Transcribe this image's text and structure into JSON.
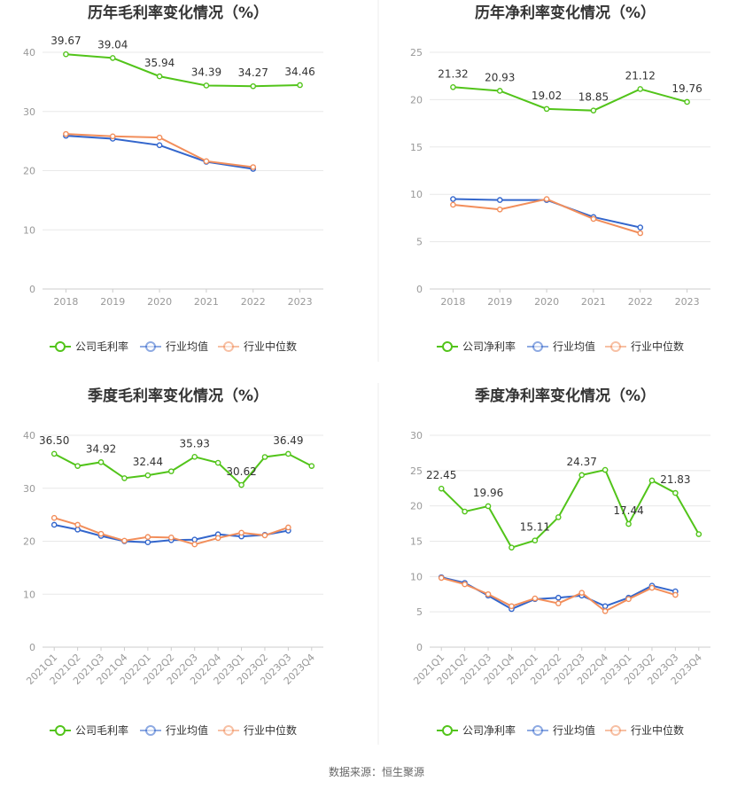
{
  "source_text": "数据来源：恒生聚源",
  "legend_colors": {
    "company": "#52c41a",
    "avg": "#3366cc",
    "median": "#f28e5b"
  },
  "chart_data": [
    {
      "type": "line",
      "title": "历年毛利率变化情况（%）",
      "categories": [
        "2018",
        "2019",
        "2020",
        "2021",
        "2022",
        "2023"
      ],
      "ylim": [
        0,
        40
      ],
      "yticks": [
        0,
        10,
        20,
        30,
        40
      ],
      "series": [
        {
          "name": "公司毛利率",
          "color": "#52c41a",
          "values": [
            39.67,
            39.04,
            35.94,
            34.39,
            34.27,
            34.46
          ],
          "labels": [
            "39.67",
            "39.04",
            "35.94",
            "34.39",
            "34.27",
            "34.46"
          ]
        },
        {
          "name": "行业均值",
          "color": "#3366cc",
          "values": [
            25.9,
            25.4,
            24.3,
            21.5,
            20.3,
            null
          ]
        },
        {
          "name": "行业中位数",
          "color": "#f28e5b",
          "values": [
            26.2,
            25.8,
            25.6,
            21.6,
            20.6,
            null
          ]
        }
      ]
    },
    {
      "type": "line",
      "title": "历年净利率变化情况（%）",
      "categories": [
        "2018",
        "2019",
        "2020",
        "2021",
        "2022",
        "2023"
      ],
      "ylim": [
        0,
        25
      ],
      "yticks": [
        0,
        5,
        10,
        15,
        20,
        25
      ],
      "series": [
        {
          "name": "公司净利率",
          "color": "#52c41a",
          "values": [
            21.32,
            20.93,
            19.02,
            18.85,
            21.12,
            19.76
          ],
          "labels": [
            "21.32",
            "20.93",
            "19.02",
            "18.85",
            "21.12",
            "19.76"
          ]
        },
        {
          "name": "行业均值",
          "color": "#3366cc",
          "values": [
            9.5,
            9.4,
            9.4,
            7.6,
            6.5,
            null
          ]
        },
        {
          "name": "行业中位数",
          "color": "#f28e5b",
          "values": [
            8.9,
            8.4,
            9.5,
            7.4,
            5.9,
            null
          ]
        }
      ]
    },
    {
      "type": "line",
      "title": "季度毛利率变化情况（%）",
      "categories": [
        "2021Q1",
        "2021Q2",
        "2021Q3",
        "2021Q4",
        "2022Q1",
        "2022Q2",
        "2022Q3",
        "2022Q4",
        "2023Q1",
        "2023Q2",
        "2023Q3",
        "2023Q4"
      ],
      "ylim": [
        0,
        40
      ],
      "yticks": [
        0,
        10,
        20,
        30,
        40
      ],
      "series": [
        {
          "name": "公司毛利率",
          "color": "#52c41a",
          "values": [
            36.5,
            34.2,
            34.92,
            31.9,
            32.44,
            33.2,
            35.93,
            34.8,
            30.62,
            35.9,
            36.49,
            34.2
          ],
          "labels": [
            "36.50",
            "",
            "34.92",
            "",
            "32.44",
            "",
            "35.93",
            "",
            "30.62",
            "",
            "36.49",
            ""
          ]
        },
        {
          "name": "行业均值",
          "color": "#3366cc",
          "values": [
            23.1,
            22.2,
            21.0,
            20.0,
            19.8,
            20.2,
            20.3,
            21.3,
            20.9,
            21.2,
            22.0,
            null
          ]
        },
        {
          "name": "行业中位数",
          "color": "#f28e5b",
          "values": [
            24.4,
            23.1,
            21.4,
            20.1,
            20.8,
            20.7,
            19.4,
            20.6,
            21.6,
            21.1,
            22.6,
            null
          ]
        }
      ]
    },
    {
      "type": "line",
      "title": "季度净利率变化情况（%）",
      "categories": [
        "2021Q1",
        "2021Q2",
        "2021Q3",
        "2021Q4",
        "2022Q1",
        "2022Q2",
        "2022Q3",
        "2022Q4",
        "2023Q1",
        "2023Q2",
        "2023Q3",
        "2023Q4"
      ],
      "ylim": [
        0,
        30
      ],
      "yticks": [
        0,
        5,
        10,
        15,
        20,
        25,
        30
      ],
      "series": [
        {
          "name": "公司净利率",
          "color": "#52c41a",
          "values": [
            22.45,
            19.2,
            19.96,
            14.1,
            15.11,
            18.4,
            24.37,
            25.1,
            17.44,
            23.6,
            21.83,
            16.0
          ],
          "labels": [
            "22.45",
            "",
            "19.96",
            "",
            "15.11",
            "",
            "24.37",
            "",
            "17.44",
            "",
            "21.83",
            ""
          ]
        },
        {
          "name": "行业均值",
          "color": "#3366cc",
          "values": [
            9.9,
            9.1,
            7.3,
            5.4,
            6.8,
            7.0,
            7.3,
            5.8,
            7.0,
            8.7,
            7.9,
            null
          ]
        },
        {
          "name": "行业中位数",
          "color": "#f28e5b",
          "values": [
            9.8,
            8.9,
            7.5,
            5.8,
            6.9,
            6.2,
            7.7,
            5.1,
            6.8,
            8.4,
            7.4,
            null
          ]
        }
      ]
    }
  ]
}
